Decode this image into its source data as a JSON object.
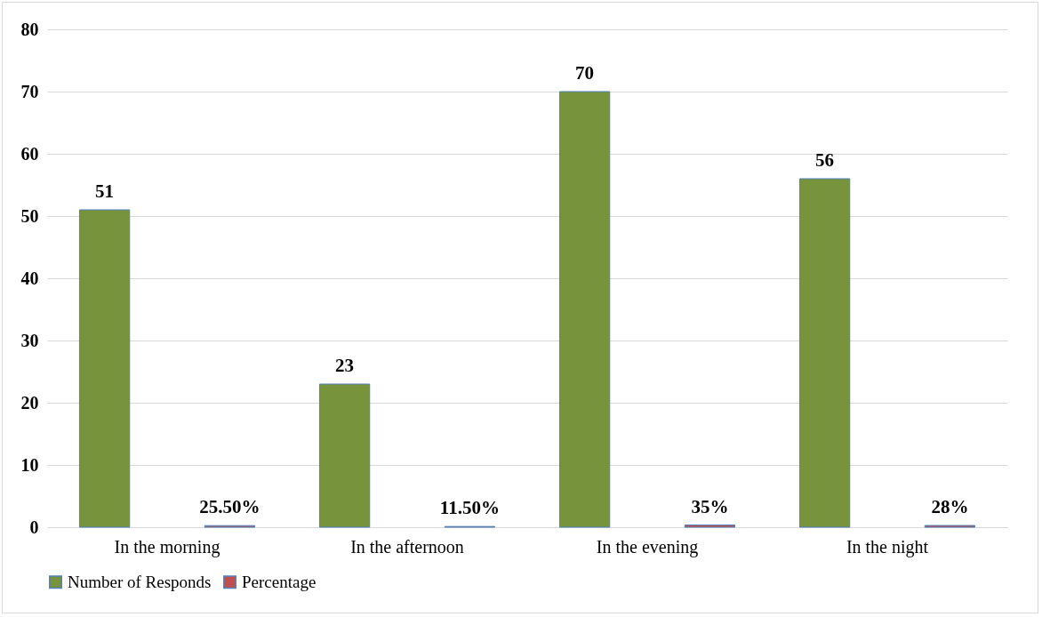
{
  "chart_data": {
    "type": "bar",
    "categories": [
      "In the morning",
      "In the afternoon",
      "In the evening",
      "In the night"
    ],
    "series": [
      {
        "name": "Number of Responds",
        "color": "#77933c",
        "values": [
          51,
          23,
          70,
          56
        ],
        "value_labels": [
          "51",
          "23",
          "70",
          "56"
        ]
      },
      {
        "name": "Percentage",
        "color": "#c0504d",
        "values": [
          0.255,
          0.115,
          0.35,
          0.28
        ],
        "value_labels": [
          "25.50%",
          "11.50%",
          "35%",
          "28%"
        ]
      }
    ],
    "ylim": [
      0,
      80
    ],
    "yticks": [
      0,
      10,
      20,
      30,
      40,
      50,
      60,
      70,
      80
    ],
    "grid": "y",
    "legend": "bottom"
  }
}
